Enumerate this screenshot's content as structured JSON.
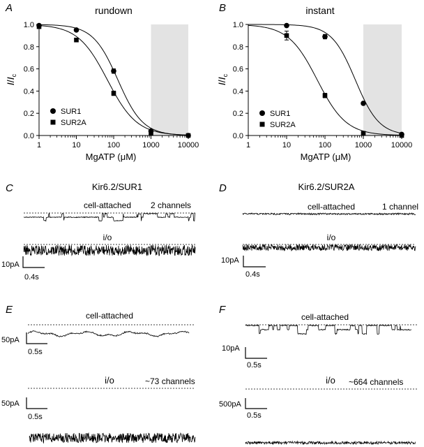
{
  "chart_data": [
    {
      "type": "scatter",
      "panel": "A",
      "title": "rundown",
      "xlabel_main": "MgATP (",
      "xlabel_mu": "μ",
      "xlabel_end": "M)",
      "ylabel_i": "I",
      "ylabel_slash": "/",
      "ylabel_i2": "I",
      "ylabel_sub": "c",
      "x_scale": "log",
      "xlim": [
        1,
        10000
      ],
      "ylim": [
        0,
        1.0
      ],
      "x_ticks": [
        "1",
        "10",
        "100",
        "1000",
        "10000"
      ],
      "y_ticks": [
        "0.0",
        "0.2",
        "0.4",
        "0.6",
        "0.8",
        "1.0"
      ],
      "shaded_range": [
        1000,
        10000
      ],
      "legend_position": "bottom-left",
      "series": [
        {
          "name": "SUR1",
          "marker": "circle",
          "x": [
            1,
            10,
            100,
            1000,
            10000
          ],
          "y": [
            0.99,
            0.95,
            0.58,
            0.04,
            0.0
          ],
          "err": [
            0.01,
            0.01,
            0.02,
            0.01,
            0.0
          ],
          "ic50": 130,
          "hill": 1.3
        },
        {
          "name": "SUR2A",
          "marker": "square",
          "x": [
            1,
            10,
            100,
            1000,
            10000
          ],
          "y": [
            0.98,
            0.86,
            0.38,
            0.02,
            0.0
          ],
          "err": [
            0.01,
            0.01,
            0.02,
            0.0,
            0.0
          ],
          "ic50": 68,
          "hill": 1.1
        }
      ]
    },
    {
      "type": "scatter",
      "panel": "B",
      "title": "instant",
      "xlabel_main": "MgATP (",
      "xlabel_mu": "μ",
      "xlabel_end": "M)",
      "ylabel_i": "I",
      "ylabel_slash": "/",
      "ylabel_i2": "I",
      "ylabel_sub": "c",
      "x_scale": "log",
      "xlim": [
        1,
        10000
      ],
      "ylim": [
        0,
        1.0
      ],
      "x_ticks": [
        "1",
        "10",
        "100",
        "1000",
        "10000"
      ],
      "y_ticks": [
        "0.0",
        "0.2",
        "0.4",
        "0.6",
        "0.8",
        "1.0"
      ],
      "shaded_range": [
        1000,
        10000
      ],
      "legend_position": "bottom-left",
      "series": [
        {
          "name": "SUR1",
          "marker": "circle",
          "x": [
            10,
            100,
            1000,
            10000
          ],
          "y": [
            0.99,
            0.89,
            0.29,
            0.01
          ],
          "err": [
            0.0,
            0.02,
            0.01,
            0.01
          ],
          "ic50": 620,
          "hill": 1.4
        },
        {
          "name": "SUR2A",
          "marker": "square",
          "x": [
            10,
            100,
            1000,
            10000
          ],
          "y": [
            0.9,
            0.36,
            0.02,
            0.0
          ],
          "err": [
            0.04,
            0.02,
            0.0,
            0.0
          ],
          "ic50": 63,
          "hill": 1.15
        }
      ]
    }
  ],
  "traces": {
    "C": {
      "letter": "C",
      "title": "Kir6.2/SUR1",
      "label1": "cell-attached",
      "count1": "2 channels",
      "label2": "i/o",
      "scale_y": "10pA",
      "scale_x": "0.4s"
    },
    "D": {
      "letter": "D",
      "title": "Kir6.2/SUR2A",
      "label1": "cell-attached",
      "count1": "1 channel",
      "label2": "i/o",
      "scale_y": "10pA",
      "scale_x": "0.4s"
    },
    "E": {
      "letter": "E",
      "label1": "cell-attached",
      "scale1_y": "50pA",
      "scale1_x": "0.5s",
      "label2": "i/o",
      "count2": "~73 channels",
      "scale2_y": "50pA",
      "scale2_x": "0.5s"
    },
    "F": {
      "letter": "F",
      "label1": "cell-attached",
      "scale1_y": "10pA",
      "scale1_x": "0.5s",
      "label2": "i/o",
      "count2": "~664 channels",
      "scale2_y": "500pA",
      "scale2_x": "0.5s"
    }
  }
}
